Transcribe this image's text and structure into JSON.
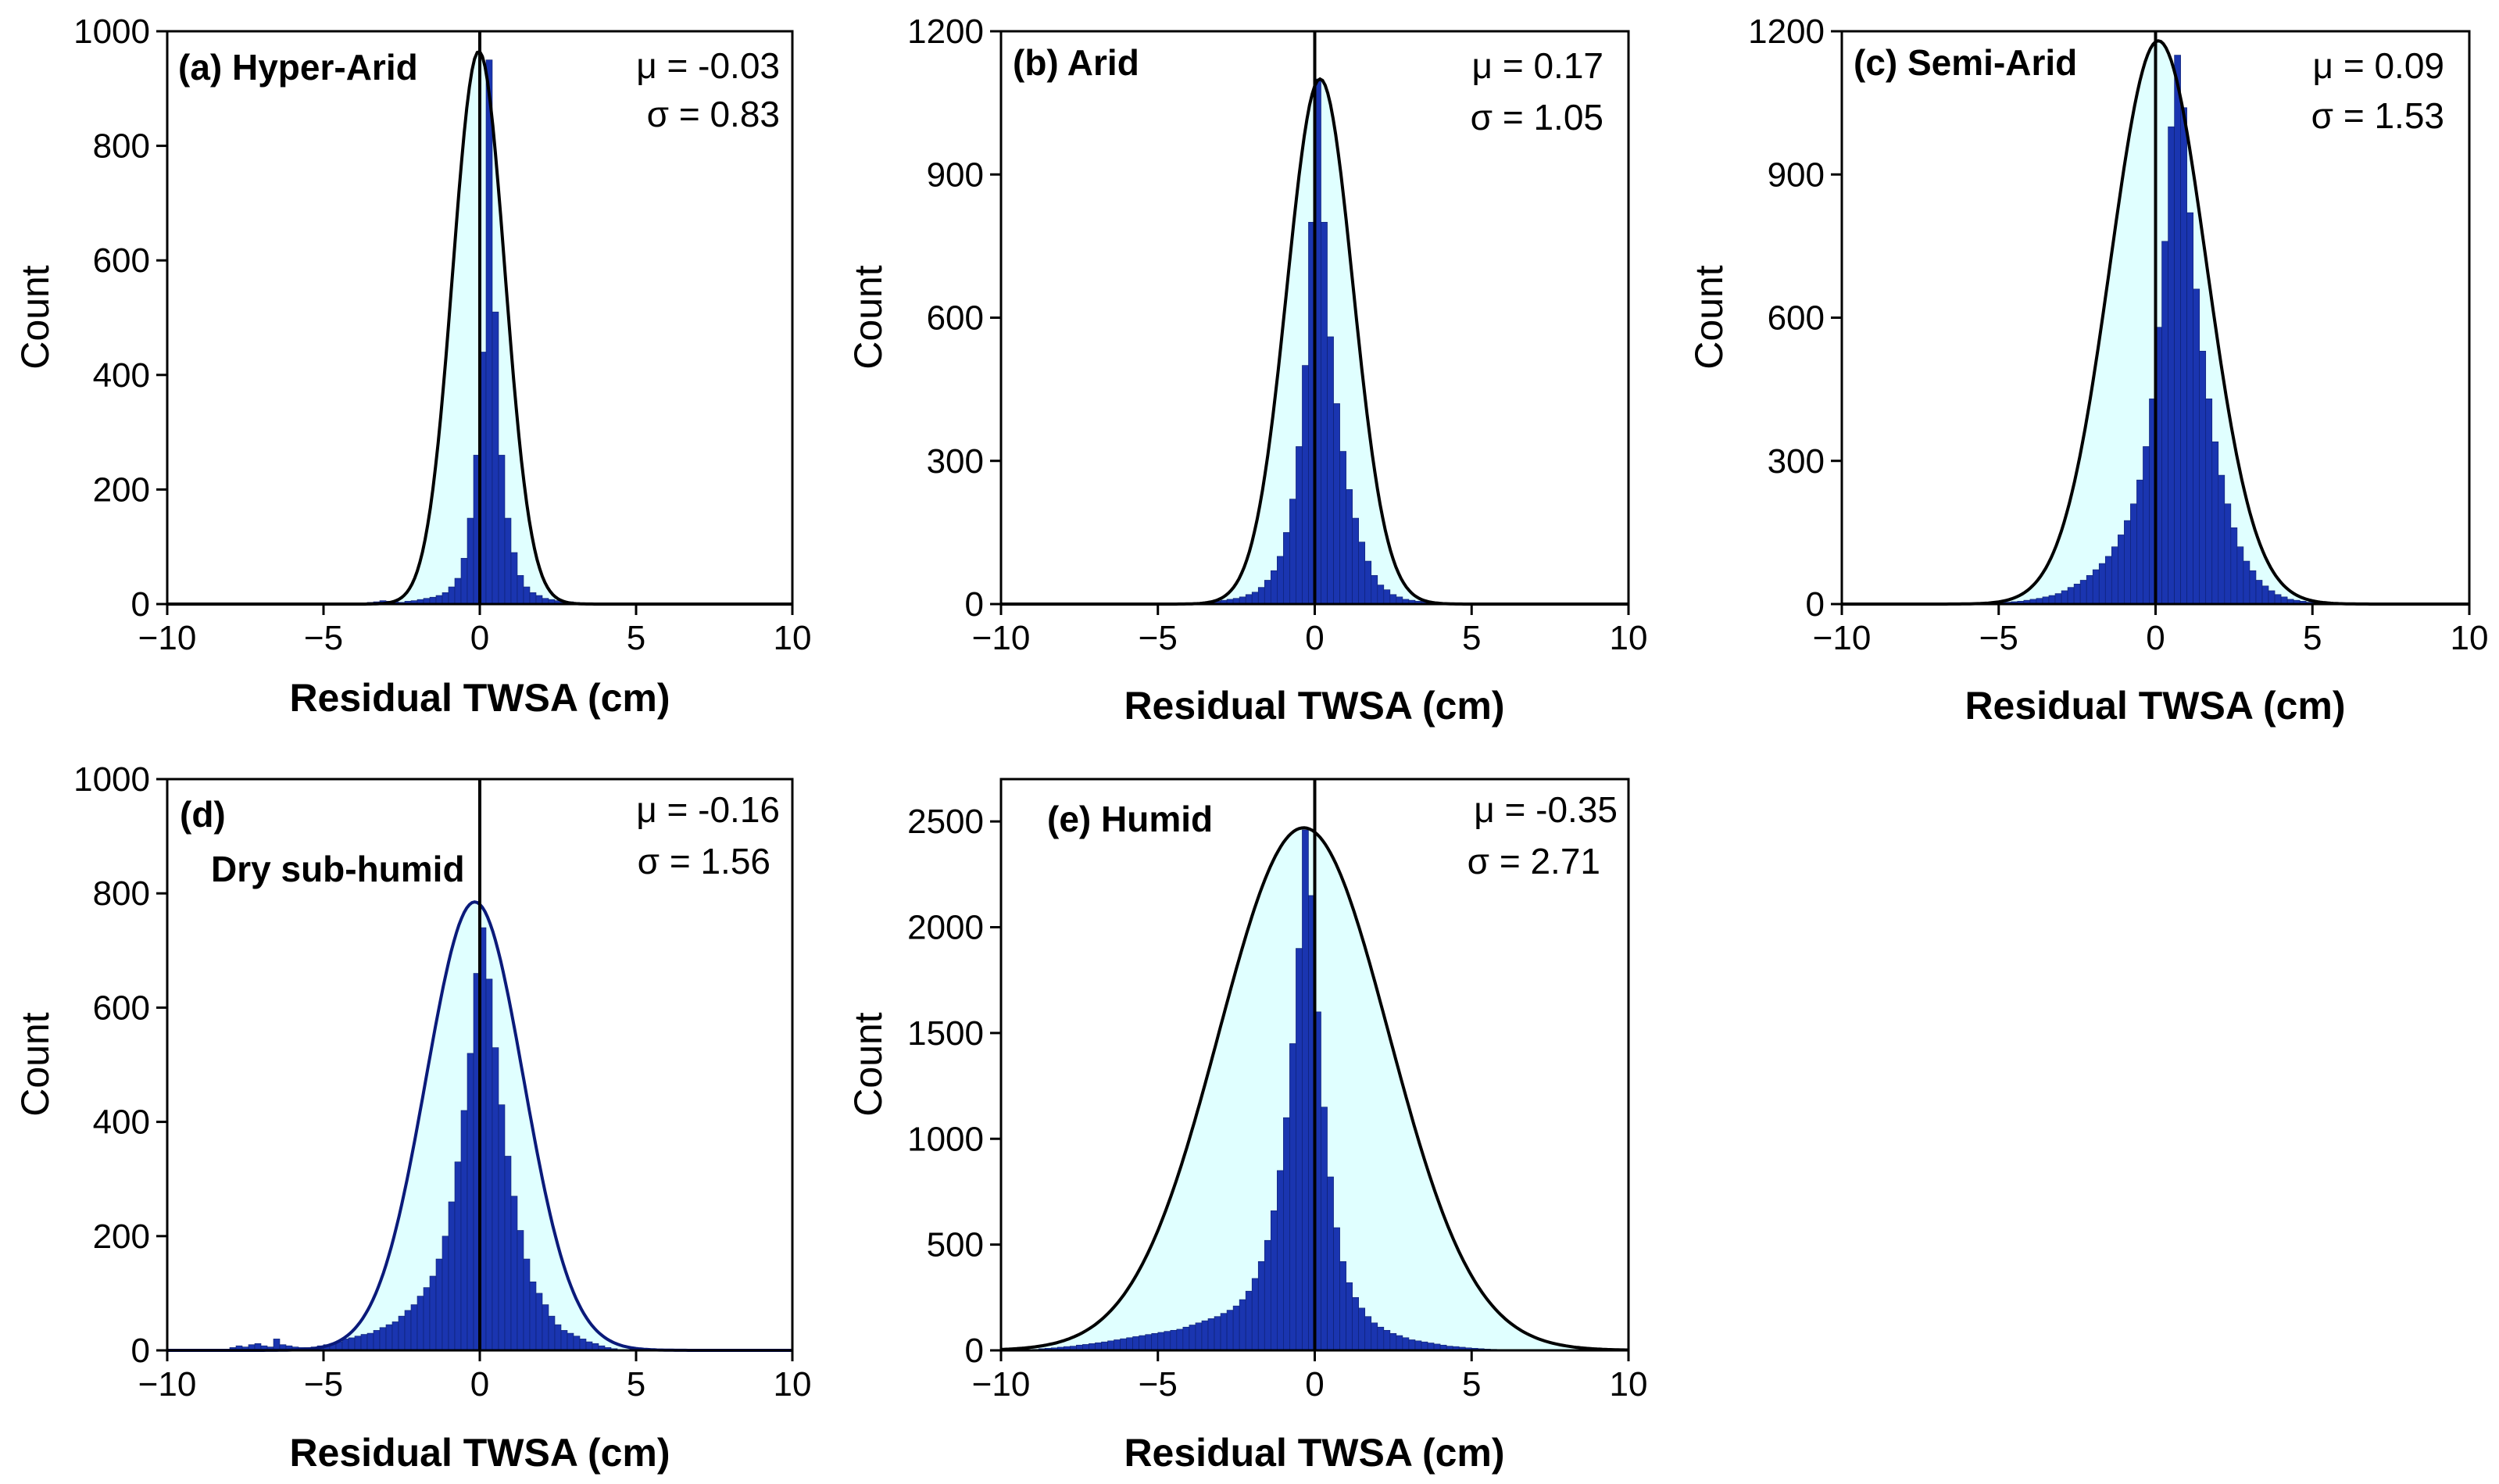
{
  "chart_data": [
    {
      "type": "bar",
      "panel_label": "(a) Hyper-Arid",
      "stat_mu": "μ = -0.03",
      "stat_sigma": "σ = 0.83",
      "mu": -0.03,
      "sigma": 0.83,
      "xlabel": "Residual TWSA (cm)",
      "ylabel": "Count",
      "xlim": [
        -10,
        10
      ],
      "ylim": [
        0,
        1000
      ],
      "xticks": [
        -10,
        -5,
        0,
        5,
        10
      ],
      "xtick_labels": [
        "−10",
        "−5",
        "0",
        "5",
        "10"
      ],
      "yticks": [
        0,
        200,
        400,
        600,
        800,
        1000
      ],
      "ytick_labels": [
        "0",
        "200",
        "400",
        "600",
        "800",
        "1000"
      ],
      "vline_x": 0,
      "fit_peak": 965,
      "bin_width": 0.2,
      "bin_start": -3.6,
      "hist_values": [
        3,
        4,
        6,
        5,
        4,
        3,
        5,
        6,
        8,
        10,
        12,
        15,
        20,
        30,
        45,
        80,
        150,
        260,
        440,
        950,
        510,
        260,
        150,
        90,
        50,
        30,
        20,
        15,
        10,
        8,
        6,
        5,
        4,
        3,
        2,
        2
      ],
      "colors": {
        "hist": "#1a35b0",
        "fill": "#e0ffff",
        "curve": "#000000"
      }
    },
    {
      "type": "bar",
      "panel_label": "(b) Arid",
      "stat_mu": "μ = 0.17",
      "stat_sigma": "σ = 1.05",
      "mu": 0.17,
      "sigma": 1.05,
      "xlabel": "Residual TWSA (cm)",
      "ylabel": "Count",
      "xlim": [
        -10,
        10
      ],
      "ylim": [
        0,
        1200
      ],
      "xticks": [
        -10,
        -5,
        0,
        5,
        10
      ],
      "xtick_labels": [
        "−10",
        "−5",
        "0",
        "5",
        "10"
      ],
      "yticks": [
        0,
        300,
        600,
        900,
        1200
      ],
      "ytick_labels": [
        "0",
        "300",
        "600",
        "900",
        "1200"
      ],
      "vline_x": 0,
      "fit_peak": 1100,
      "bin_width": 0.2,
      "bin_start": -4.0,
      "hist_values": [
        2,
        3,
        4,
        5,
        6,
        8,
        10,
        12,
        15,
        20,
        25,
        35,
        50,
        70,
        100,
        150,
        220,
        330,
        500,
        800,
        1100,
        800,
        560,
        420,
        320,
        240,
        180,
        130,
        90,
        60,
        40,
        30,
        20,
        15,
        10,
        8,
        6,
        5,
        4,
        3,
        3,
        2,
        2,
        2,
        2,
        2,
        1,
        1
      ],
      "colors": {
        "hist": "#1a35b0",
        "fill": "#e0ffff",
        "curve": "#000000"
      }
    },
    {
      "type": "bar",
      "panel_label": "(c) Semi-Arid",
      "stat_mu": "μ = 0.09",
      "stat_sigma": "σ = 1.53",
      "mu": 0.09,
      "sigma": 1.53,
      "xlabel": "Residual TWSA (cm)",
      "ylabel": "Count",
      "xlim": [
        -10,
        10
      ],
      "ylim": [
        0,
        1200
      ],
      "xticks": [
        -10,
        -5,
        0,
        5,
        10
      ],
      "xtick_labels": [
        "−10",
        "−5",
        "0",
        "5",
        "10"
      ],
      "yticks": [
        0,
        300,
        600,
        900,
        1200
      ],
      "ytick_labels": [
        "0",
        "300",
        "600",
        "900",
        "1200"
      ],
      "vline_x": 0,
      "fit_peak": 1180,
      "bin_width": 0.2,
      "bin_start": -5.0,
      "hist_values": [
        3,
        4,
        5,
        6,
        8,
        10,
        12,
        15,
        18,
        22,
        28,
        35,
        42,
        50,
        60,
        72,
        85,
        100,
        120,
        145,
        175,
        210,
        260,
        330,
        430,
        580,
        760,
        1000,
        1150,
        1040,
        820,
        660,
        530,
        430,
        340,
        270,
        210,
        160,
        120,
        90,
        70,
        50,
        38,
        28,
        20,
        15,
        10,
        8,
        6,
        4,
        3,
        3,
        2,
        2,
        2,
        2,
        1,
        1
      ],
      "colors": {
        "hist": "#1a35b0",
        "fill": "#e0ffff",
        "curve": "#000000"
      }
    },
    {
      "type": "bar",
      "panel_label_line1": "(d)",
      "panel_label_line2": "Dry sub-humid",
      "stat_mu": "μ = -0.16",
      "stat_sigma": "σ = 1.56",
      "mu": -0.16,
      "sigma": 1.56,
      "xlabel": "Residual TWSA (cm)",
      "ylabel": "Count",
      "xlim": [
        -10,
        10
      ],
      "ylim": [
        0,
        1000
      ],
      "xticks": [
        -10,
        -5,
        0,
        5,
        10
      ],
      "xtick_labels": [
        "−10",
        "−5",
        "0",
        "5",
        "10"
      ],
      "yticks": [
        0,
        200,
        400,
        600,
        800,
        1000
      ],
      "ytick_labels": [
        "0",
        "200",
        "400",
        "600",
        "800",
        "1000"
      ],
      "vline_x": 0,
      "fit_peak": 785,
      "bin_width": 0.2,
      "bin_start": -8.0,
      "hist_values": [
        5,
        8,
        6,
        10,
        12,
        8,
        6,
        20,
        10,
        8,
        6,
        5,
        5,
        6,
        8,
        10,
        12,
        15,
        20,
        22,
        25,
        28,
        30,
        35,
        40,
        45,
        50,
        60,
        70,
        80,
        95,
        110,
        130,
        160,
        200,
        260,
        330,
        420,
        520,
        660,
        740,
        650,
        530,
        430,
        340,
        270,
        210,
        160,
        120,
        100,
        80,
        60,
        45,
        35,
        30,
        25,
        20,
        15,
        12,
        8,
        5,
        3
      ],
      "colors": {
        "hist": "#1a35b0",
        "fill": "#e0ffff",
        "curve": "#0a1a7a"
      }
    },
    {
      "type": "bar",
      "panel_label": "(e) Humid",
      "stat_mu": "μ = -0.35",
      "stat_sigma": "σ = 2.71",
      "mu": -0.35,
      "sigma": 2.71,
      "xlabel": "Residual TWSA (cm)",
      "ylabel": "Count",
      "xlim": [
        -10,
        10
      ],
      "ylim": [
        0,
        2700
      ],
      "xticks": [
        -10,
        -5,
        0,
        5,
        10
      ],
      "xtick_labels": [
        "−10",
        "−5",
        "0",
        "5",
        "10"
      ],
      "yticks": [
        0,
        500,
        1000,
        1500,
        2000,
        2500
      ],
      "ytick_labels": [
        "0",
        "500",
        "1000",
        "1500",
        "2000",
        "2500"
      ],
      "vline_x": 0,
      "fit_peak": 2470,
      "bin_width": 0.2,
      "bin_start": -9.0,
      "hist_values": [
        5,
        8,
        10,
        12,
        15,
        18,
        20,
        25,
        28,
        32,
        36,
        40,
        45,
        50,
        55,
        60,
        65,
        70,
        75,
        80,
        85,
        90,
        95,
        100,
        110,
        120,
        130,
        140,
        150,
        160,
        175,
        190,
        210,
        240,
        280,
        340,
        420,
        520,
        660,
        850,
        1100,
        1450,
        1900,
        2460,
        2150,
        1600,
        1150,
        820,
        580,
        420,
        320,
        250,
        200,
        160,
        130,
        110,
        95,
        80,
        70,
        60,
        50,
        45,
        40,
        35,
        30,
        25,
        20,
        18,
        15,
        12,
        10,
        8,
        6,
        5,
        4,
        3,
        2,
        2,
        1,
        1
      ],
      "colors": {
        "hist": "#1a35b0",
        "fill": "#e0ffff",
        "curve": "#000000"
      }
    }
  ]
}
